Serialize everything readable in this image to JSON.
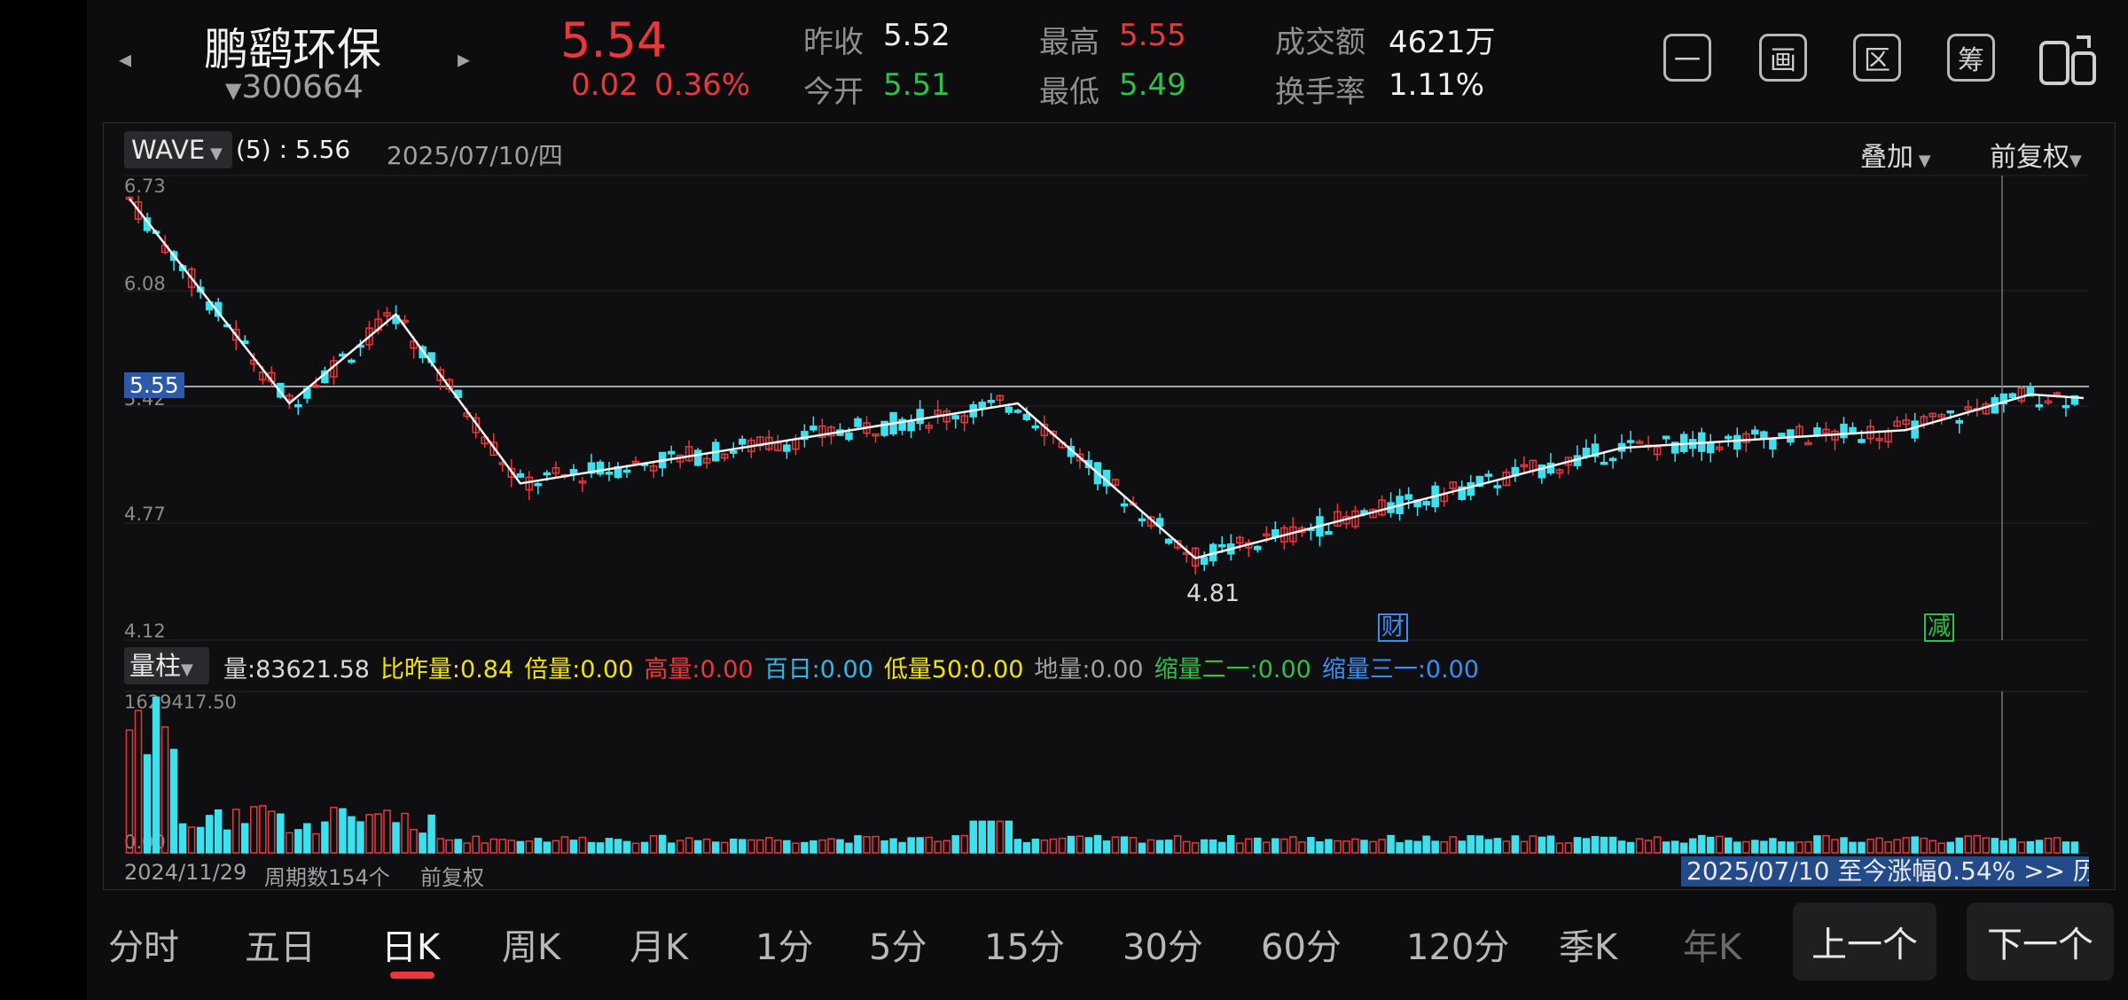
{
  "header": {
    "stock_name": "鹏鹞环保",
    "stock_code": "300664",
    "price": "5.54",
    "change": "0.02",
    "change_pct": "0.36%",
    "prev_close_label": "昨收",
    "prev_close": "5.52",
    "open_label": "今开",
    "open": "5.51",
    "high_label": "最高",
    "high": "5.55",
    "low_label": "最低",
    "low": "5.49",
    "turnover_amount_label": "成交额",
    "turnover_amount": "4621万",
    "turnover_rate_label": "换手率",
    "turnover_rate": "1.11%",
    "tools": [
      {
        "icon": "minus-icon",
        "label": "一"
      },
      {
        "icon": "draw-icon",
        "label": "画"
      },
      {
        "icon": "range-icon",
        "label": "区"
      },
      {
        "icon": "chips-icon",
        "label": "筹"
      },
      {
        "icon": "multi-screen-icon",
        "label": ""
      }
    ]
  },
  "kline": {
    "indicator": "WAVE",
    "indicator_value": "(5) : 5.56",
    "date": "2025/07/10/四",
    "overlay_label": "叠加",
    "adjust_label": "前复权",
    "price_ticks": [
      "6.73",
      "6.08",
      "5.42",
      "4.77",
      "4.12"
    ],
    "current_price_tag": "5.55",
    "low_mark": "4.81",
    "event_cai": "财",
    "event_jian": "减"
  },
  "volume": {
    "selector": "量柱",
    "items": [
      {
        "label": "量:83621.58",
        "color": "#d8d8d8"
      },
      {
        "label": "比昨量:0.84",
        "color": "#f2e400"
      },
      {
        "label": "倍量:0.00",
        "color": "#f2e400"
      },
      {
        "label": "高量:0.00",
        "color": "#e8383d"
      },
      {
        "label": "百日:0.00",
        "color": "#2fb8e8"
      },
      {
        "label": "低量50:0.00",
        "color": "#f2e400"
      },
      {
        "label": "地量:0.00",
        "color": "#a0a0a0"
      },
      {
        "label": "缩量二一:0.00",
        "color": "#2fbf4a"
      },
      {
        "label": "缩量三一:0.00",
        "color": "#3b8ef0"
      }
    ],
    "max_tick": "1629417.50",
    "zero_tick": "0.00",
    "start_date": "2024/11/29",
    "period_count": "周期数154个",
    "adjust": "前复权",
    "range_note": "2025/07/10 至今涨幅0.54%",
    "range_more": ">> 历"
  },
  "tabs": [
    "分时",
    "五日",
    "日K",
    "周K",
    "月K",
    "1分",
    "5分",
    "15分",
    "30分",
    "60分",
    "120分",
    "季K",
    "年K"
  ],
  "nav": {
    "prev": "上一个",
    "next": "下一个"
  },
  "colors": {
    "up": "#e8383d",
    "down": "#3fe0ee",
    "bg": "#0d0d0f"
  }
}
